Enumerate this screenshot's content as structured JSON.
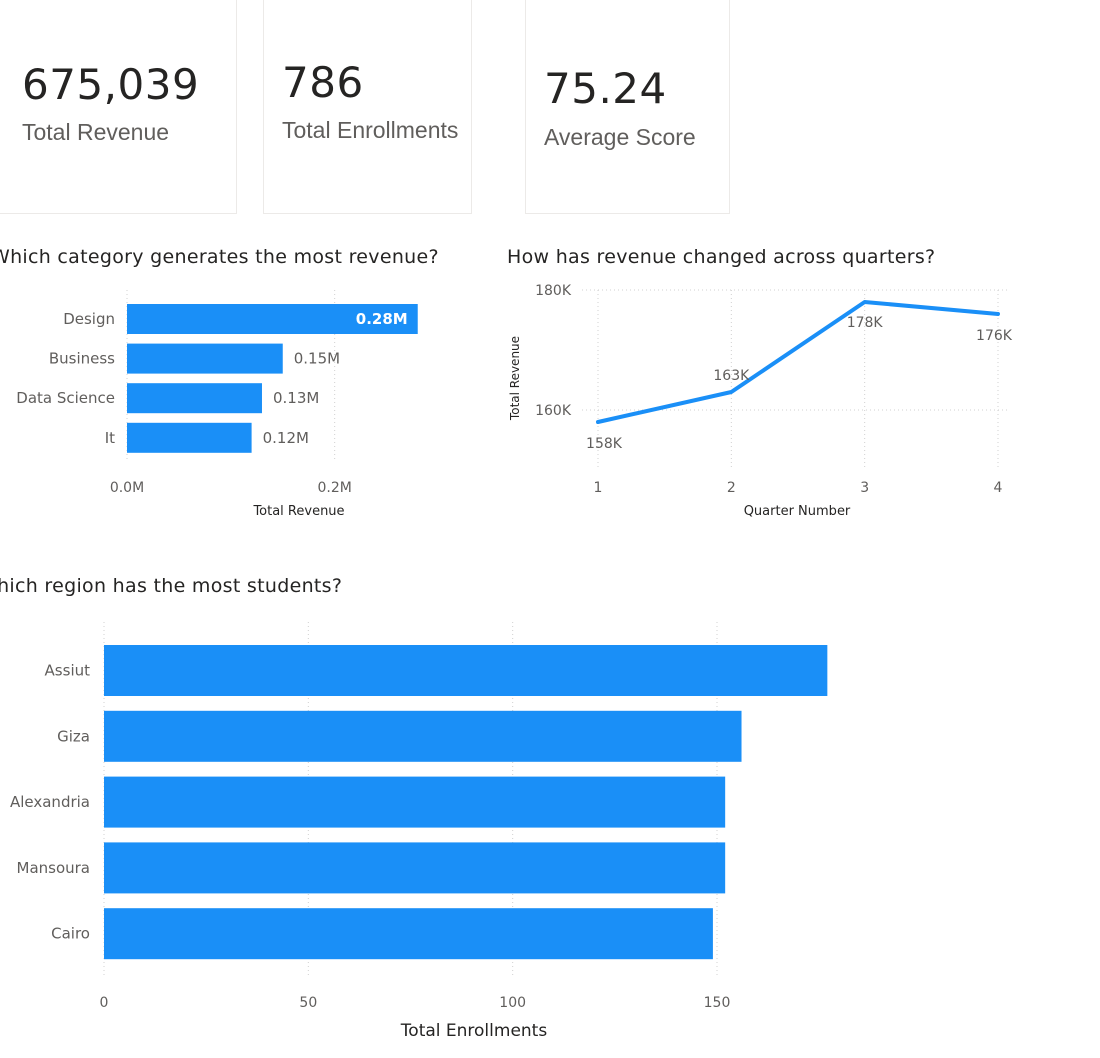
{
  "kpis": [
    {
      "value": "675,039",
      "label": "Total Revenue"
    },
    {
      "value": "786",
      "label": "Total Enrollments"
    },
    {
      "value": "75.24",
      "label": "Average Score"
    }
  ],
  "colors": {
    "bar": "#1a8ff7",
    "line": "#1a8ff7",
    "grid": "#d0d0d0",
    "axis_text": "#605e5c",
    "title_text": "#252423"
  },
  "chart_data": [
    {
      "type": "bar",
      "orientation": "horizontal",
      "title": "Which category generates the most revenue?",
      "xlabel": "Total Revenue",
      "categories": [
        "Design",
        "Business",
        "Data Science",
        "It"
      ],
      "values": [
        0.28,
        0.15,
        0.13,
        0.12
      ],
      "value_labels": [
        "0.28M",
        "0.15M",
        "0.13M",
        "0.12M"
      ],
      "xlim": [
        0,
        0.3
      ],
      "xticks": [
        {
          "value": 0,
          "label": "0.0M"
        },
        {
          "value": 0.2,
          "label": "0.2M"
        }
      ],
      "grid": true
    },
    {
      "type": "line",
      "title": "How has revenue changed across quarters?",
      "xlabel": "Quarter Number",
      "ylabel": "Total Revenue",
      "x": [
        1,
        2,
        3,
        4
      ],
      "y": [
        158,
        163,
        178,
        176
      ],
      "value_labels": [
        "158K",
        "163K",
        "178K",
        "176K"
      ],
      "ylim": [
        157,
        180
      ],
      "yticks": [
        {
          "value": 160,
          "label": "160K"
        },
        {
          "value": 180,
          "label": "180K"
        }
      ],
      "xticks": [
        {
          "value": 1,
          "label": "1"
        },
        {
          "value": 2,
          "label": "2"
        },
        {
          "value": 3,
          "label": "3"
        },
        {
          "value": 4,
          "label": "4"
        }
      ],
      "grid": true
    },
    {
      "type": "bar",
      "orientation": "horizontal",
      "title": "Which region has the most students?",
      "xlabel": "Total Enrollments",
      "categories": [
        "Assiut",
        "Giza",
        "Alexandria",
        "Mansoura",
        "Cairo"
      ],
      "values": [
        177,
        156,
        152,
        152,
        149
      ],
      "xlim": [
        0,
        175
      ],
      "xticks": [
        {
          "value": 0,
          "label": "0"
        },
        {
          "value": 50,
          "label": "50"
        },
        {
          "value": 100,
          "label": "100"
        },
        {
          "value": 150,
          "label": "150"
        }
      ],
      "grid": true
    }
  ]
}
